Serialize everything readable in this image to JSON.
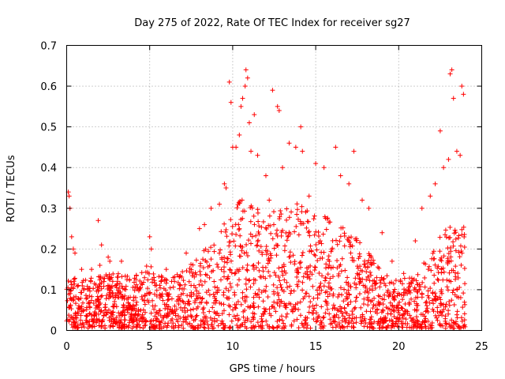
{
  "chart_data": {
    "type": "scatter",
    "title": "Day 275 of 2022, Rate Of TEC Index for receiver sg27",
    "xlabel": "GPS time / hours",
    "ylabel": "ROTI / TECUs",
    "xlim": [
      0,
      25
    ],
    "ylim": [
      0,
      0.7
    ],
    "xticks": [
      0,
      5,
      10,
      15,
      20,
      25
    ],
    "yticks": [
      0,
      0.1,
      0.2,
      0.3,
      0.4,
      0.5,
      0.6,
      0.7
    ],
    "xtick_labels": [
      "0",
      "5",
      "10",
      "15",
      "20",
      "25"
    ],
    "ytick_labels": [
      "0",
      "0.1",
      "0.2",
      "0.3",
      "0.4",
      "0.5",
      "0.6",
      "0.7"
    ],
    "grid": true,
    "marker": "plus",
    "color": "#ff0000",
    "x_extent": [
      0,
      24
    ],
    "series": [
      {
        "points": [
          [
            0.1,
            0.34
          ],
          [
            0.15,
            0.33
          ],
          [
            0.2,
            0.3
          ],
          [
            0.3,
            0.23
          ],
          [
            0.4,
            0.2
          ],
          [
            0.5,
            0.19
          ],
          [
            0.9,
            0.15
          ],
          [
            1.5,
            0.15
          ],
          [
            1.9,
            0.27
          ],
          [
            2.0,
            0.16
          ],
          [
            2.1,
            0.21
          ],
          [
            2.5,
            0.18
          ],
          [
            2.6,
            0.17
          ],
          [
            3.3,
            0.17
          ],
          [
            5.0,
            0.23
          ],
          [
            5.1,
            0.2
          ],
          [
            6.0,
            0.15
          ],
          [
            7.2,
            0.19
          ],
          [
            8.0,
            0.25
          ],
          [
            8.3,
            0.26
          ],
          [
            8.7,
            0.3
          ],
          [
            9.2,
            0.31
          ],
          [
            9.5,
            0.36
          ],
          [
            9.6,
            0.35
          ],
          [
            9.8,
            0.61
          ],
          [
            9.9,
            0.56
          ],
          [
            10.0,
            0.45
          ],
          [
            10.2,
            0.45
          ],
          [
            10.4,
            0.48
          ],
          [
            10.5,
            0.55
          ],
          [
            10.6,
            0.57
          ],
          [
            10.75,
            0.6
          ],
          [
            10.8,
            0.64
          ],
          [
            10.9,
            0.62
          ],
          [
            11.0,
            0.51
          ],
          [
            11.1,
            0.44
          ],
          [
            11.3,
            0.53
          ],
          [
            11.5,
            0.43
          ],
          [
            12.0,
            0.38
          ],
          [
            12.2,
            0.32
          ],
          [
            12.4,
            0.59
          ],
          [
            12.7,
            0.55
          ],
          [
            12.8,
            0.54
          ],
          [
            13.0,
            0.4
          ],
          [
            13.4,
            0.46
          ],
          [
            13.8,
            0.45
          ],
          [
            14.1,
            0.5
          ],
          [
            14.2,
            0.44
          ],
          [
            14.6,
            0.33
          ],
          [
            15.0,
            0.41
          ],
          [
            15.5,
            0.4
          ],
          [
            16.2,
            0.45
          ],
          [
            16.5,
            0.38
          ],
          [
            17.0,
            0.36
          ],
          [
            17.3,
            0.44
          ],
          [
            17.8,
            0.32
          ],
          [
            18.2,
            0.3
          ],
          [
            19.0,
            0.24
          ],
          [
            19.6,
            0.17
          ],
          [
            20.3,
            0.14
          ],
          [
            21.0,
            0.22
          ],
          [
            21.4,
            0.3
          ],
          [
            21.9,
            0.33
          ],
          [
            22.2,
            0.36
          ],
          [
            22.5,
            0.49
          ],
          [
            22.7,
            0.4
          ],
          [
            23.0,
            0.42
          ],
          [
            23.1,
            0.63
          ],
          [
            23.2,
            0.64
          ],
          [
            23.3,
            0.57
          ],
          [
            23.5,
            0.44
          ],
          [
            23.7,
            0.43
          ],
          [
            23.8,
            0.6
          ],
          [
            23.9,
            0.58
          ]
        ]
      }
    ]
  }
}
